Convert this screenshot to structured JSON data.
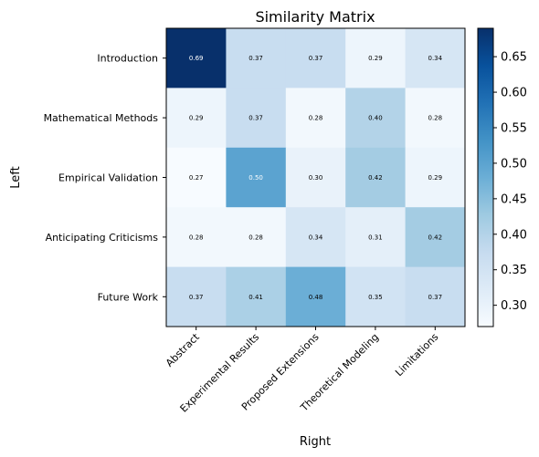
{
  "chart_data": {
    "type": "heatmap",
    "title": "Similarity Matrix",
    "xlabel": "Right",
    "ylabel": "Left",
    "rows": [
      "Introduction",
      "Mathematical Methods",
      "Empirical Validation",
      "Anticipating Criticisms",
      "Future Work"
    ],
    "columns": [
      "Abstract",
      "Experimental Results",
      "Proposed Extensions",
      "Theoretical Modeling",
      "Limitations"
    ],
    "values": [
      [
        0.69,
        0.37,
        0.37,
        0.29,
        0.34
      ],
      [
        0.29,
        0.37,
        0.28,
        0.4,
        0.28
      ],
      [
        0.27,
        0.5,
        0.3,
        0.42,
        0.29
      ],
      [
        0.28,
        0.28,
        0.34,
        0.31,
        0.42
      ],
      [
        0.37,
        0.41,
        0.48,
        0.35,
        0.37
      ]
    ],
    "value_range": [
      0.27,
      0.69
    ],
    "colormap": "Blues",
    "colorbar_ticks": [
      "0.30",
      "0.35",
      "0.40",
      "0.45",
      "0.50",
      "0.55",
      "0.60",
      "0.65"
    ],
    "grid": false
  }
}
